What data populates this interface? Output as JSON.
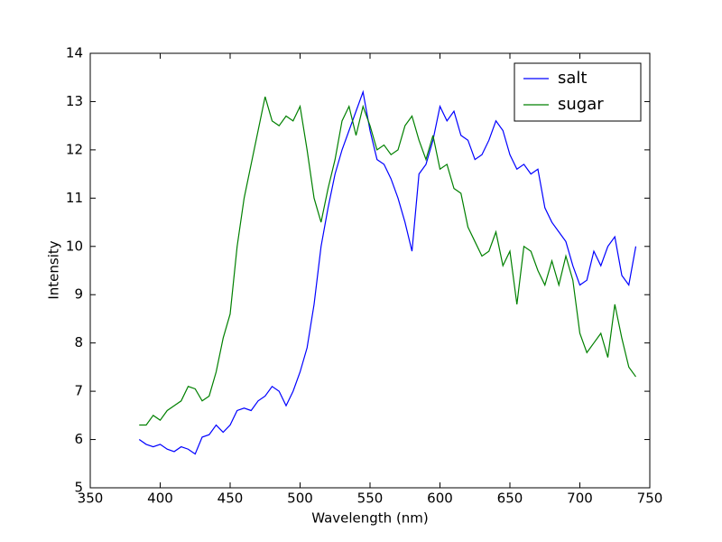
{
  "chart_data": {
    "type": "line",
    "x_label": "Wavelength (nm)",
    "y_label": "Intensity",
    "x": [
      385,
      390,
      395,
      400,
      405,
      410,
      415,
      420,
      425,
      430,
      435,
      440,
      445,
      450,
      455,
      460,
      465,
      470,
      475,
      480,
      485,
      490,
      495,
      500,
      505,
      510,
      515,
      520,
      525,
      530,
      535,
      540,
      545,
      550,
      555,
      560,
      565,
      570,
      575,
      580,
      585,
      590,
      595,
      600,
      605,
      610,
      615,
      620,
      625,
      630,
      635,
      640,
      645,
      650,
      655,
      660,
      665,
      670,
      675,
      680,
      685,
      690,
      695,
      700,
      705,
      710,
      715,
      720,
      725,
      730,
      735,
      740
    ],
    "series": [
      {
        "name": "salt",
        "color": "#0000ff",
        "values": [
          6.0,
          5.9,
          5.85,
          5.9,
          5.8,
          5.75,
          5.85,
          5.8,
          5.7,
          6.05,
          6.1,
          6.3,
          6.15,
          6.3,
          6.6,
          6.65,
          6.6,
          6.8,
          6.9,
          7.1,
          7.0,
          6.7,
          7.0,
          7.4,
          7.9,
          8.8,
          10.0,
          10.8,
          11.5,
          12.0,
          12.4,
          12.8,
          13.2,
          12.4,
          11.8,
          11.7,
          11.4,
          11.0,
          10.5,
          9.9,
          11.5,
          11.7,
          12.2,
          12.9,
          12.6,
          12.8,
          12.3,
          12.2,
          11.8,
          11.9,
          12.2,
          12.6,
          12.4,
          11.9,
          11.6,
          11.7,
          11.5,
          11.6,
          10.8,
          10.5,
          10.3,
          10.1,
          9.6,
          9.2,
          9.3,
          9.9,
          9.6,
          10.0,
          10.2,
          9.4,
          9.2,
          10.0
        ]
      },
      {
        "name": "sugar",
        "color": "#008000",
        "values": [
          6.3,
          6.3,
          6.5,
          6.4,
          6.6,
          6.7,
          6.8,
          7.1,
          7.05,
          6.8,
          6.9,
          7.4,
          8.1,
          8.6,
          10.0,
          11.0,
          11.7,
          12.4,
          13.1,
          12.6,
          12.5,
          12.7,
          12.6,
          12.9,
          12.0,
          11.0,
          10.5,
          11.2,
          11.8,
          12.6,
          12.9,
          12.3,
          12.9,
          12.5,
          12.0,
          12.1,
          11.9,
          12.0,
          12.5,
          12.7,
          12.2,
          11.8,
          12.3,
          11.6,
          11.7,
          11.2,
          11.1,
          10.4,
          10.1,
          9.8,
          9.9,
          10.3,
          9.6,
          9.9,
          8.8,
          10.0,
          9.9,
          9.5,
          9.2,
          9.7,
          9.2,
          9.8,
          9.3,
          8.2,
          7.8,
          8.0,
          8.2,
          7.7,
          8.8,
          8.1,
          7.5,
          7.3
        ]
      }
    ],
    "xlim": [
      350,
      750
    ],
    "ylim": [
      5,
      14
    ],
    "xticks": [
      350,
      400,
      450,
      500,
      550,
      600,
      650,
      700,
      750
    ],
    "yticks": [
      5,
      6,
      7,
      8,
      9,
      10,
      11,
      12,
      13,
      14
    ],
    "legend": "upper right"
  }
}
